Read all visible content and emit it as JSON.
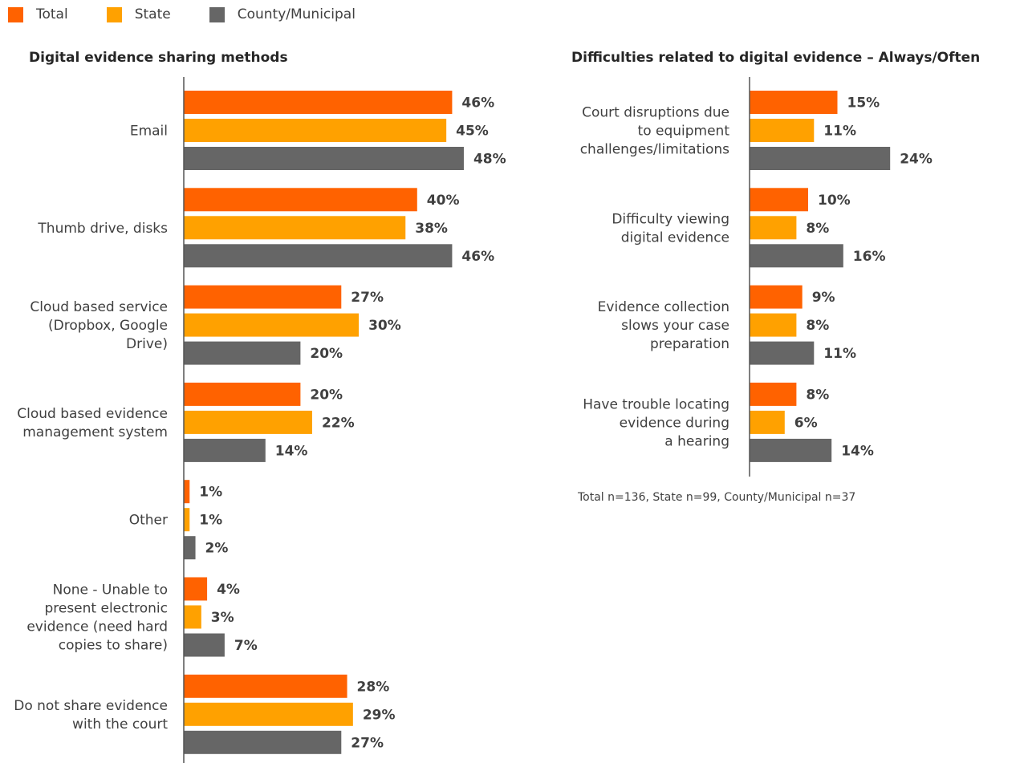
{
  "legend": [
    {
      "name": "Total",
      "color": "#FF6200"
    },
    {
      "name": "State",
      "color": "#FFA100"
    },
    {
      "name": "County/Municipal",
      "color": "#666666"
    }
  ],
  "footnote": "Total n=136, State n=99, County/Municipal n=37",
  "chart_data": [
    {
      "type": "bar",
      "orientation": "horizontal",
      "title": "Digital evidence sharing methods",
      "categories": [
        [
          "Email"
        ],
        [
          "Thumb drive, disks"
        ],
        [
          "Cloud based service",
          "(Dropbox, Google",
          "Drive)"
        ],
        [
          "Cloud based evidence",
          "management system"
        ],
        [
          "Other"
        ],
        [
          "None - Unable to",
          "present electronic",
          "evidence (need hard",
          "copies to share)"
        ],
        [
          "Do not share evidence",
          "with the court"
        ]
      ],
      "series": [
        {
          "name": "Total",
          "color": "#FF6200",
          "values": [
            46,
            40,
            27,
            20,
            1,
            4,
            28
          ]
        },
        {
          "name": "State",
          "color": "#FFA100",
          "values": [
            45,
            38,
            30,
            22,
            1,
            3,
            29
          ]
        },
        {
          "name": "County/Municipal",
          "color": "#666666",
          "values": [
            48,
            46,
            20,
            14,
            2,
            7,
            27
          ]
        }
      ],
      "value_suffix": "%",
      "grid": false
    },
    {
      "type": "bar",
      "orientation": "horizontal",
      "title": "Difficulties related to digital evidence – Always/Often",
      "categories": [
        [
          "Court disruptions due",
          "to equipment",
          "challenges/limitations"
        ],
        [
          "Difficulty viewing",
          "digital evidence"
        ],
        [
          "Evidence collection",
          "slows your case",
          "preparation"
        ],
        [
          "Have trouble locating",
          "evidence during",
          "a hearing"
        ]
      ],
      "series": [
        {
          "name": "Total",
          "color": "#FF6200",
          "values": [
            15,
            10,
            9,
            8
          ]
        },
        {
          "name": "State",
          "color": "#FFA100",
          "values": [
            11,
            8,
            8,
            6
          ]
        },
        {
          "name": "County/Municipal",
          "color": "#666666",
          "values": [
            24,
            16,
            11,
            14
          ]
        }
      ],
      "value_suffix": "%",
      "grid": false
    }
  ]
}
